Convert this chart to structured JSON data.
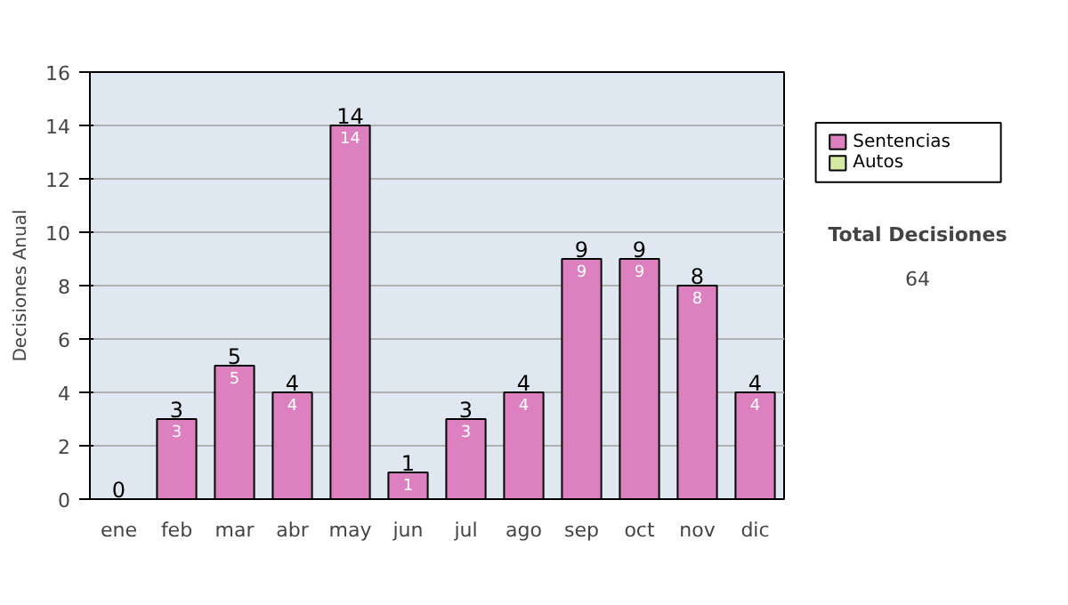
{
  "chart_data": {
    "type": "bar",
    "ylabel": "Decisiones Anual",
    "categories": [
      "ene",
      "feb",
      "mar",
      "abr",
      "may",
      "jun",
      "jul",
      "ago",
      "sep",
      "oct",
      "nov",
      "dic"
    ],
    "stacked": true,
    "series": [
      {
        "name": "Sentencias",
        "color": "#dd80c0",
        "values": [
          0,
          3,
          5,
          4,
          14,
          1,
          3,
          4,
          9,
          9,
          8,
          4
        ],
        "value_labels": [
          null,
          "3",
          "5",
          "4",
          "14",
          "1",
          "3",
          "4",
          "9",
          "9",
          "8",
          "4"
        ]
      },
      {
        "name": "Autos",
        "color": "#d4eaa0",
        "values": [
          0,
          0,
          0,
          0,
          0,
          0,
          0,
          0,
          0,
          0,
          0,
          0
        ]
      }
    ],
    "totals": [
      "0",
      "3",
      "5",
      "4",
      "14",
      "1",
      "3",
      "4",
      "9",
      "9",
      "8",
      "4"
    ],
    "ylim": [
      0,
      16
    ],
    "yticks": [
      0,
      2,
      4,
      6,
      8,
      10,
      12,
      14,
      16
    ],
    "grid": "y",
    "legend": "right",
    "annotations": [
      "Total Decisiones",
      "64"
    ]
  }
}
